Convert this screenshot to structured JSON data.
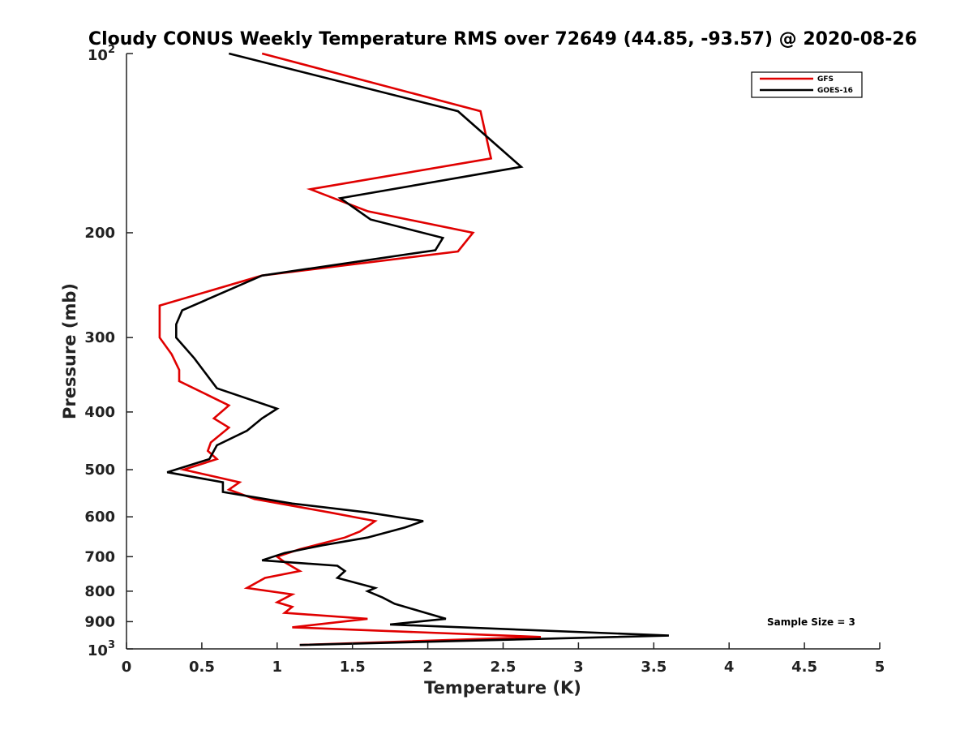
{
  "chart_data": {
    "type": "line",
    "title": "Cloudy CONUS Weekly Temperature RMS over 72649 (44.85, -93.57) @ 2020-08-26",
    "xlabel": "Temperature (K)",
    "ylabel": "Pressure (mb)",
    "xlim": [
      0,
      5
    ],
    "ylim": [
      100,
      1000
    ],
    "y_scale": "log",
    "y_reversed": true,
    "x_ticks": [
      "0",
      "0.5",
      "1",
      "1.5",
      "2",
      "2.5",
      "3",
      "3.5",
      "4",
      "4.5",
      "5"
    ],
    "y_ticks": [
      {
        "value": 100,
        "base": "10",
        "exp": "2"
      },
      {
        "value": 200,
        "label": "200"
      },
      {
        "value": 300,
        "label": "300"
      },
      {
        "value": 400,
        "label": "400"
      },
      {
        "value": 500,
        "label": "500"
      },
      {
        "value": 600,
        "label": "600"
      },
      {
        "value": 700,
        "label": "700"
      },
      {
        "value": 800,
        "label": "800"
      },
      {
        "value": 900,
        "label": "900"
      },
      {
        "value": 1000,
        "base": "10",
        "exp": "3"
      }
    ],
    "legend_position": "top-right",
    "annotation": "Sample Size = 3",
    "series": [
      {
        "name": "GFS",
        "color": "#e00000",
        "points": [
          [
            0.9,
            100
          ],
          [
            2.35,
            125
          ],
          [
            2.42,
            150
          ],
          [
            1.22,
            169
          ],
          [
            1.6,
            184
          ],
          [
            2.3,
            200
          ],
          [
            2.2,
            215
          ],
          [
            0.9,
            236
          ],
          [
            0.22,
            265
          ],
          [
            0.22,
            280
          ],
          [
            0.22,
            300
          ],
          [
            0.3,
            320
          ],
          [
            0.35,
            340
          ],
          [
            0.35,
            355
          ],
          [
            0.68,
            390
          ],
          [
            0.58,
            410
          ],
          [
            0.68,
            425
          ],
          [
            0.56,
            450
          ],
          [
            0.54,
            465
          ],
          [
            0.6,
            480
          ],
          [
            0.38,
            500
          ],
          [
            0.75,
            525
          ],
          [
            0.68,
            540
          ],
          [
            0.85,
            560
          ],
          [
            1.35,
            590
          ],
          [
            1.65,
            610
          ],
          [
            1.55,
            635
          ],
          [
            1.45,
            650
          ],
          [
            1.15,
            680
          ],
          [
            1.0,
            700
          ],
          [
            1.05,
            715
          ],
          [
            1.15,
            740
          ],
          [
            0.92,
            760
          ],
          [
            0.8,
            790
          ],
          [
            1.1,
            810
          ],
          [
            1.0,
            835
          ],
          [
            1.1,
            850
          ],
          [
            1.05,
            870
          ],
          [
            1.6,
            890
          ],
          [
            1.1,
            920
          ],
          [
            2.75,
            955
          ],
          [
            1.15,
            985
          ]
        ]
      },
      {
        "name": "GOES-16",
        "color": "#000000",
        "points": [
          [
            0.68,
            100
          ],
          [
            2.2,
            125
          ],
          [
            2.62,
            155
          ],
          [
            1.42,
            175
          ],
          [
            1.62,
            190
          ],
          [
            2.1,
            204
          ],
          [
            2.05,
            214
          ],
          [
            0.9,
            236
          ],
          [
            0.37,
            270
          ],
          [
            0.33,
            285
          ],
          [
            0.33,
            300
          ],
          [
            0.45,
            325
          ],
          [
            0.6,
            365
          ],
          [
            1.0,
            395
          ],
          [
            0.9,
            410
          ],
          [
            0.8,
            430
          ],
          [
            0.6,
            455
          ],
          [
            0.55,
            480
          ],
          [
            0.27,
            505
          ],
          [
            0.64,
            525
          ],
          [
            0.64,
            545
          ],
          [
            1.1,
            570
          ],
          [
            1.6,
            590
          ],
          [
            1.97,
            610
          ],
          [
            1.85,
            625
          ],
          [
            1.6,
            650
          ],
          [
            1.3,
            670
          ],
          [
            1.05,
            690
          ],
          [
            0.9,
            710
          ],
          [
            1.4,
            725
          ],
          [
            1.45,
            740
          ],
          [
            1.4,
            760
          ],
          [
            1.65,
            790
          ],
          [
            1.6,
            800
          ],
          [
            1.7,
            820
          ],
          [
            1.78,
            840
          ],
          [
            2.12,
            890
          ],
          [
            1.75,
            910
          ],
          [
            3.6,
            950
          ],
          [
            1.15,
            985
          ]
        ]
      }
    ]
  }
}
